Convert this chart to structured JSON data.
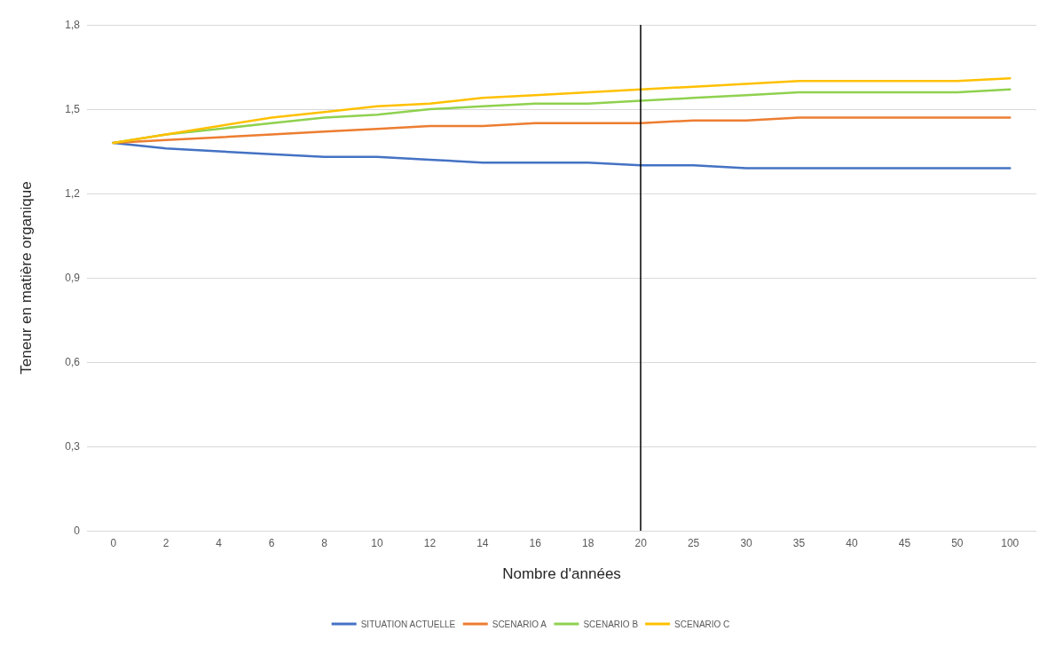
{
  "chart_data": {
    "type": "line",
    "xlabel": "Nombre d'années",
    "ylabel": "Teneur en matière organique",
    "categories": [
      "0",
      "2",
      "4",
      "6",
      "8",
      "10",
      "12",
      "14",
      "16",
      "18",
      "20",
      "25",
      "30",
      "35",
      "40",
      "45",
      "50",
      "100"
    ],
    "series": [
      {
        "name": "SITUATION ACTUELLE",
        "color": "#4472c4",
        "values": [
          1.38,
          1.36,
          1.35,
          1.34,
          1.33,
          1.33,
          1.32,
          1.31,
          1.31,
          1.31,
          1.3,
          1.3,
          1.29,
          1.29,
          1.29,
          1.29,
          1.29,
          1.29
        ]
      },
      {
        "name": "SCENARIO A",
        "color": "#ed7d31",
        "values": [
          1.38,
          1.39,
          1.4,
          1.41,
          1.42,
          1.43,
          1.44,
          1.44,
          1.45,
          1.45,
          1.45,
          1.46,
          1.46,
          1.47,
          1.47,
          1.47,
          1.47,
          1.47
        ]
      },
      {
        "name": "SCENARIO B",
        "color": "#8fd14f",
        "values": [
          1.38,
          1.41,
          1.43,
          1.45,
          1.47,
          1.48,
          1.5,
          1.51,
          1.52,
          1.52,
          1.53,
          1.54,
          1.55,
          1.56,
          1.56,
          1.56,
          1.56,
          1.57
        ]
      },
      {
        "name": "SCENARIO C",
        "color": "#ffc000",
        "values": [
          1.38,
          1.41,
          1.44,
          1.47,
          1.49,
          1.51,
          1.52,
          1.54,
          1.55,
          1.56,
          1.57,
          1.58,
          1.59,
          1.6,
          1.6,
          1.6,
          1.6,
          1.61
        ]
      }
    ],
    "ylim": [
      0,
      1.8
    ],
    "yticks": [
      {
        "value": 0,
        "label": "0"
      },
      {
        "value": 0.3,
        "label": "0,3"
      },
      {
        "value": 0.6,
        "label": "0,6"
      },
      {
        "value": 0.9,
        "label": "0,9"
      },
      {
        "value": 1.2,
        "label": "1,2"
      },
      {
        "value": 1.5,
        "label": "1,5"
      },
      {
        "value": 1.8,
        "label": "1,8"
      }
    ],
    "ref_lines": [
      {
        "axis": "x",
        "value": "20",
        "color": "#000000"
      }
    ],
    "grid": "y",
    "legend": "bottom",
    "marker": "none",
    "line_style": "solid"
  }
}
